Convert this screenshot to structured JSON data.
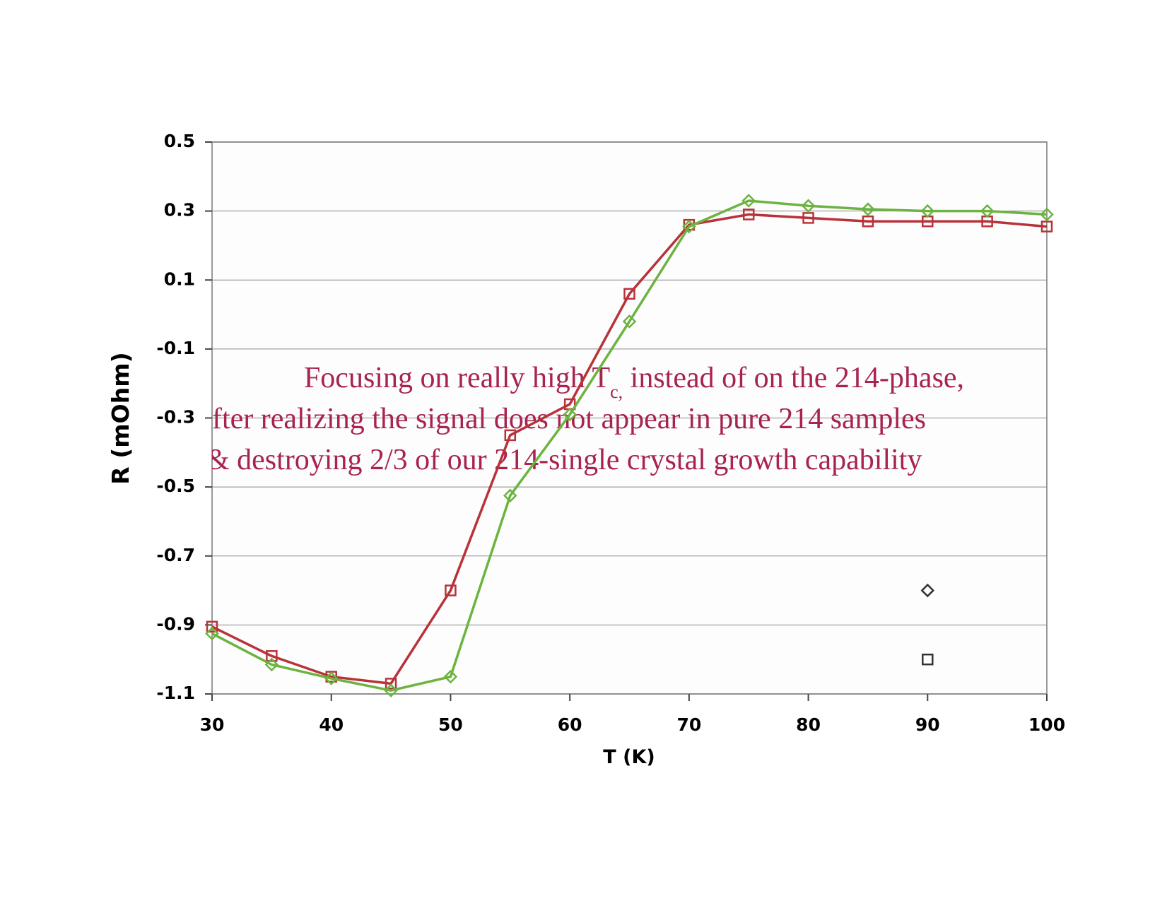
{
  "chart_data": {
    "type": "line",
    "xlabel": "T (K)",
    "ylabel": "R (mOhm)",
    "x": [
      30,
      35,
      40,
      45,
      50,
      55,
      60,
      65,
      70,
      75,
      80,
      85,
      90,
      95,
      100
    ],
    "series": [
      {
        "color": "#b8323a",
        "marker": "square",
        "values": [
          -0.905,
          -0.99,
          -1.05,
          -1.07,
          -0.8,
          -0.35,
          -0.26,
          0.06,
          0.26,
          0.29,
          0.28,
          0.27,
          0.27,
          0.27,
          0.255
        ]
      },
      {
        "color": "#6cb33f",
        "marker": "diamond",
        "values": [
          -0.925,
          -1.015,
          -1.055,
          -1.09,
          -1.05,
          -0.525,
          -0.29,
          -0.02,
          0.255,
          0.33,
          0.315,
          0.305,
          0.3,
          0.3,
          0.29
        ]
      }
    ],
    "points": [
      {
        "x": 90,
        "y": -0.8,
        "marker": "diamond",
        "color": "#333333"
      },
      {
        "x": 90,
        "y": -1.0,
        "marker": "square",
        "color": "#333333"
      }
    ],
    "annotation": {
      "color": "#a8234f",
      "lines": [
        [
          "Focusing on really high T",
          "c,",
          " instead of on the 214-phase,"
        ],
        [
          "fter realizing the signal does not appear in pure 214 samples"
        ],
        [
          "& destroying 2/3 of our 214-single crystal growth capability"
        ]
      ]
    },
    "xlim": [
      30,
      100
    ],
    "xticks": [
      30,
      40,
      50,
      60,
      70,
      80,
      90,
      100
    ],
    "ylim": [
      -1.1,
      0.5
    ],
    "yticks": [
      -1.1,
      -0.9,
      -0.7,
      -0.5,
      -0.3,
      -0.1,
      0.1,
      0.3,
      0.5
    ],
    "grid": true
  }
}
